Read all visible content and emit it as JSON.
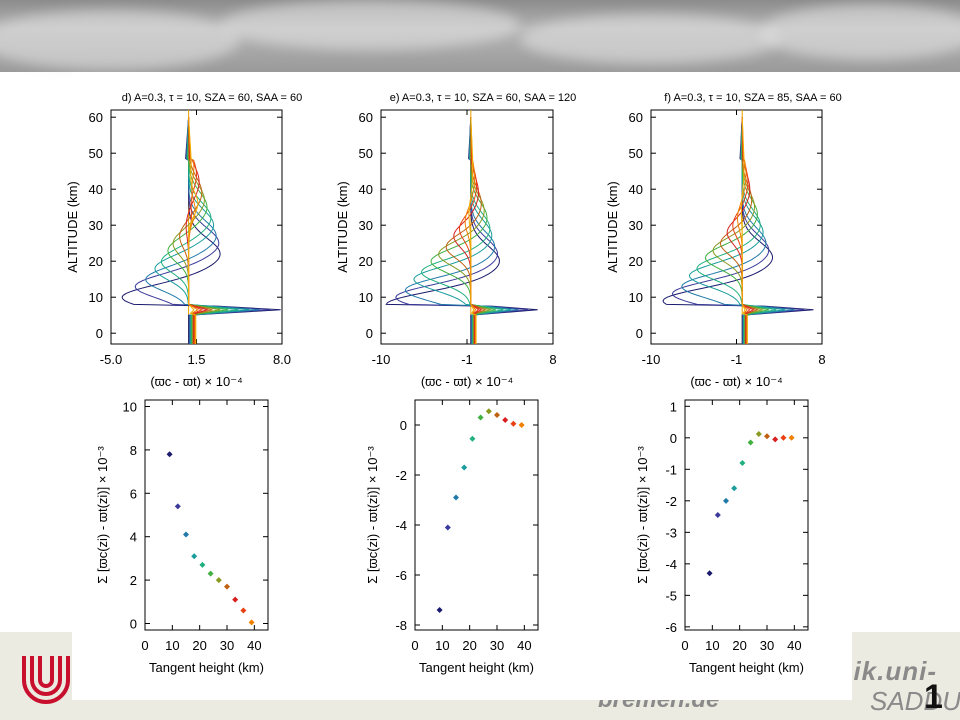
{
  "footer": {
    "url_line1": "sik.uni-",
    "url_line2": "bremen.de",
    "sadd": "SADDU",
    "page_number": "1"
  },
  "chart_data": [
    {
      "type": "line",
      "title": "d) A=0.3, τ = 10, SZA = 60, SAA = 60",
      "xlabel": "(ϖc - ϖt) × 10⁻⁴",
      "ylabel": "ALTITUDE (km)",
      "xlim": [
        -5.0,
        8.0
      ],
      "ylim": [
        -3,
        62
      ],
      "xticks": [
        "-5.0",
        "1.5",
        "8.0"
      ],
      "yticks": [
        "0",
        "10",
        "20",
        "30",
        "40",
        "50",
        "60"
      ],
      "series_count": 12
    },
    {
      "type": "line",
      "title": "e) A=0.3, τ = 10, SZA = 60, SAA = 120",
      "xlabel": "(ϖc - ϖt) × 10⁻⁴",
      "ylabel": "",
      "xlim": [
        -10,
        8
      ],
      "ylim": [
        -3,
        62
      ],
      "xticks": [
        "-10",
        "-1",
        "8"
      ],
      "yticks": [
        "0",
        "10",
        "20",
        "30",
        "40",
        "50",
        "60"
      ],
      "series_count": 12
    },
    {
      "type": "line",
      "title": "f) A=0.3, τ = 10, SZA = 85, SAA = 60",
      "xlabel": "(ϖc - ϖt) × 10⁻⁴",
      "ylabel": "ALTITUDE (km)",
      "xlim": [
        -10,
        8
      ],
      "ylim": [
        -3,
        62
      ],
      "xticks": [
        "-10",
        "-1",
        "8"
      ],
      "yticks": [
        "0",
        "10",
        "20",
        "30",
        "40",
        "50",
        "60"
      ],
      "series_count": 12
    },
    {
      "type": "scatter",
      "xlabel": "Tangent height (km)",
      "ylabel": "Σ [ϖc(zi) - ϖt(zi)] × 10⁻³",
      "xlim": [
        0,
        45
      ],
      "ylim": [
        -0.3,
        10.3
      ],
      "xticks": [
        "0",
        "10",
        "20",
        "30",
        "40"
      ],
      "yticks": [
        "0",
        "2",
        "4",
        "6",
        "8",
        "10"
      ],
      "x": [
        9,
        12,
        15,
        18,
        21,
        24,
        27,
        30,
        33,
        36,
        39
      ],
      "y": [
        7.8,
        5.4,
        4.1,
        3.1,
        2.7,
        2.3,
        2.0,
        1.7,
        1.1,
        0.6,
        0.05
      ]
    },
    {
      "type": "scatter",
      "xlabel": "Tangent height (km)",
      "ylabel": "Σ [ϖc(zi) - ϖt(zi)] × 10⁻³",
      "xlim": [
        0,
        45
      ],
      "ylim": [
        -8.2,
        1.0
      ],
      "xticks": [
        "0",
        "10",
        "20",
        "30",
        "40"
      ],
      "yticks": [
        "-8",
        "-6",
        "-4",
        "-2",
        "0"
      ],
      "x": [
        9,
        12,
        15,
        18,
        21,
        24,
        27,
        30,
        33,
        36,
        39
      ],
      "y": [
        -7.4,
        -4.1,
        -2.9,
        -1.7,
        -0.55,
        0.3,
        0.55,
        0.4,
        0.2,
        0.05,
        0.0
      ]
    },
    {
      "type": "scatter",
      "xlabel": "Tangent height (km)",
      "ylabel": "Σ [ϖc(zi) - ϖt(zi)] × 10⁻³",
      "xlim": [
        0,
        45
      ],
      "ylim": [
        -6.1,
        1.2
      ],
      "xticks": [
        "0",
        "10",
        "20",
        "30",
        "40"
      ],
      "yticks": [
        "-6",
        "-5",
        "-4",
        "-3",
        "-2",
        "-1",
        "0",
        "1"
      ],
      "x": [
        9,
        12,
        15,
        18,
        21,
        24,
        27,
        30,
        33,
        36,
        39
      ],
      "y": [
        -4.3,
        -2.45,
        -2.0,
        -1.6,
        -0.8,
        -0.15,
        0.12,
        0.05,
        -0.05,
        0.0,
        0.0
      ]
    }
  ],
  "colors": {
    "palette": [
      "#1a1a6e",
      "#3a3a9a",
      "#1f7aa8",
      "#1a9c9c",
      "#20b080",
      "#40b040",
      "#8a9a20",
      "#c06010",
      "#d82020",
      "#e84010",
      "#f08000",
      "#f0b000"
    ]
  }
}
